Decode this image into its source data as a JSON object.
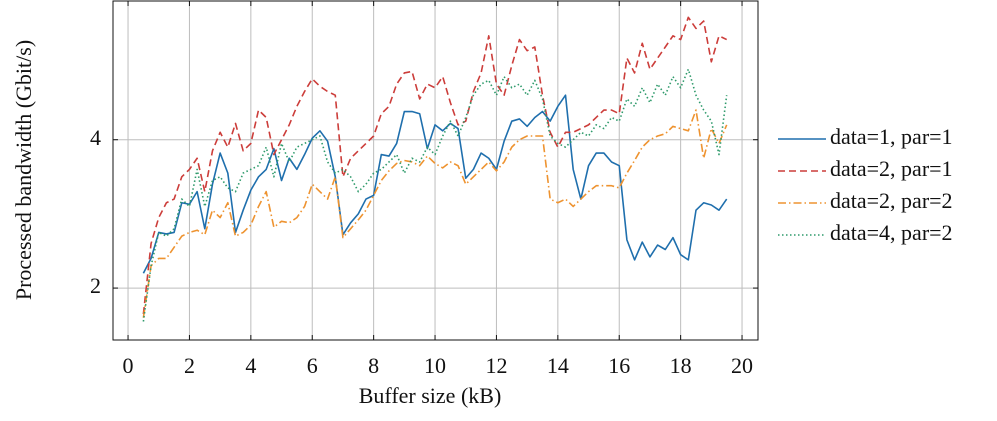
{
  "chart_data": {
    "type": "line",
    "xlabel": "Buffer size (kB)",
    "ylabel": "Processed bandwidth (Gbit/s)",
    "xlim": [
      -0.49,
      20.52
    ],
    "ylim": [
      1.3,
      5.87
    ],
    "xticks": [
      0,
      2,
      4,
      6,
      8,
      10,
      12,
      14,
      16,
      18,
      20
    ],
    "yticks": [
      2,
      4
    ],
    "grid": true,
    "legend": "outside right",
    "x": [
      0.5,
      0.75,
      1,
      1.25,
      1.5,
      1.75,
      2,
      2.25,
      2.5,
      2.75,
      3,
      3.25,
      3.5,
      3.75,
      4,
      4.25,
      4.5,
      4.75,
      5,
      5.25,
      5.5,
      5.75,
      6,
      6.25,
      6.5,
      6.75,
      7,
      7.25,
      7.5,
      7.75,
      8,
      8.25,
      8.5,
      8.75,
      9,
      9.25,
      9.5,
      9.75,
      10,
      10.25,
      10.5,
      10.75,
      11,
      11.25,
      11.5,
      11.75,
      12,
      12.25,
      12.5,
      12.75,
      13,
      13.25,
      13.5,
      13.75,
      14,
      14.25,
      14.5,
      14.75,
      15,
      15.25,
      15.5,
      15.75,
      16,
      16.25,
      16.5,
      16.75,
      17,
      17.25,
      17.5,
      17.75,
      18,
      18.25,
      18.5,
      18.75,
      19,
      19.25,
      19.5
    ],
    "series": [
      {
        "name": "data=1, par=1",
        "color": "#1f6fad",
        "dash": "none",
        "values": [
          2.2,
          2.4,
          2.75,
          2.73,
          2.75,
          3.15,
          3.13,
          3.3,
          2.8,
          3.4,
          3.82,
          3.55,
          2.75,
          3.05,
          3.32,
          3.5,
          3.6,
          3.88,
          3.45,
          3.75,
          3.6,
          3.8,
          4.02,
          4.12,
          3.98,
          3.5,
          2.72,
          2.88,
          3.0,
          3.2,
          3.25,
          3.8,
          3.78,
          3.95,
          4.38,
          4.38,
          4.35,
          3.88,
          4.2,
          4.12,
          4.22,
          4.15,
          3.48,
          3.6,
          3.82,
          3.75,
          3.6,
          3.98,
          4.25,
          4.28,
          4.18,
          4.3,
          4.38,
          4.25,
          4.45,
          4.6,
          3.6,
          3.2,
          3.65,
          3.82,
          3.82,
          3.7,
          3.65,
          2.65,
          2.38,
          2.62,
          2.42,
          2.58,
          2.52,
          2.68,
          2.45,
          2.38,
          3.05,
          3.15,
          3.12,
          3.05,
          3.2
        ]
      },
      {
        "name": "data=2, par=1",
        "color": "#cc3d3a",
        "dash": "7,4",
        "values": [
          1.65,
          2.6,
          2.95,
          3.15,
          3.2,
          3.5,
          3.6,
          3.75,
          3.3,
          3.85,
          4.1,
          3.9,
          4.22,
          3.85,
          3.95,
          4.4,
          4.3,
          3.8,
          4.0,
          4.2,
          4.45,
          4.65,
          4.82,
          4.72,
          4.65,
          4.6,
          3.5,
          3.75,
          3.85,
          3.95,
          4.05,
          4.35,
          4.45,
          4.75,
          4.9,
          4.92,
          4.55,
          4.75,
          4.7,
          4.85,
          4.5,
          4.2,
          4.25,
          4.65,
          4.9,
          5.4,
          4.75,
          4.6,
          5.0,
          5.35,
          5.2,
          5.25,
          4.6,
          4.1,
          3.9,
          4.1,
          4.1,
          4.15,
          4.2,
          4.3,
          4.4,
          4.4,
          4.35,
          5.1,
          4.9,
          5.3,
          4.95,
          5.1,
          5.25,
          5.4,
          5.35,
          5.65,
          5.5,
          5.6,
          5.05,
          5.4,
          5.35
        ]
      },
      {
        "name": "data=2, par=2",
        "color": "#ee9330",
        "dash": "8,3,1.5,3",
        "values": [
          1.6,
          2.3,
          2.4,
          2.4,
          2.55,
          2.7,
          2.75,
          2.78,
          2.72,
          3.05,
          2.95,
          3.15,
          2.7,
          2.75,
          2.85,
          3.1,
          3.3,
          2.82,
          2.9,
          2.88,
          2.95,
          3.1,
          3.4,
          3.3,
          3.2,
          3.5,
          2.68,
          2.8,
          2.92,
          3.05,
          3.25,
          3.45,
          3.58,
          3.68,
          3.72,
          3.7,
          3.65,
          3.78,
          3.68,
          3.62,
          3.7,
          3.65,
          3.4,
          3.5,
          3.6,
          3.7,
          3.58,
          3.7,
          3.9,
          4.0,
          4.05,
          4.05,
          4.05,
          3.2,
          3.15,
          3.2,
          3.1,
          3.2,
          3.3,
          3.38,
          3.38,
          3.38,
          3.35,
          3.55,
          3.72,
          3.9,
          4.0,
          4.05,
          4.08,
          4.18,
          4.15,
          4.12,
          4.4,
          3.75,
          4.15,
          3.95,
          4.2
        ]
      },
      {
        "name": "data=4, par=2",
        "color": "#2e9a6b",
        "dash": "1.5,2.5",
        "values": [
          1.55,
          2.3,
          2.75,
          2.7,
          2.8,
          3.2,
          3.1,
          3.6,
          3.1,
          3.45,
          3.5,
          3.35,
          3.3,
          3.55,
          3.6,
          3.65,
          3.9,
          3.5,
          3.95,
          3.7,
          3.9,
          3.95,
          4.0,
          4.05,
          3.7,
          3.55,
          3.6,
          3.5,
          3.3,
          3.4,
          3.55,
          3.6,
          3.7,
          3.8,
          3.55,
          3.75,
          3.7,
          3.9,
          3.8,
          4.05,
          4.25,
          4.05,
          4.3,
          4.6,
          4.75,
          4.8,
          4.6,
          4.85,
          4.7,
          4.75,
          4.6,
          4.8,
          4.55,
          4.05,
          3.95,
          3.9,
          4.0,
          4.1,
          4.05,
          4.2,
          4.15,
          4.3,
          4.25,
          4.55,
          4.45,
          4.7,
          4.5,
          4.75,
          4.6,
          4.85,
          4.7,
          4.95,
          4.6,
          4.4,
          4.25,
          3.8,
          4.6
        ]
      }
    ]
  }
}
